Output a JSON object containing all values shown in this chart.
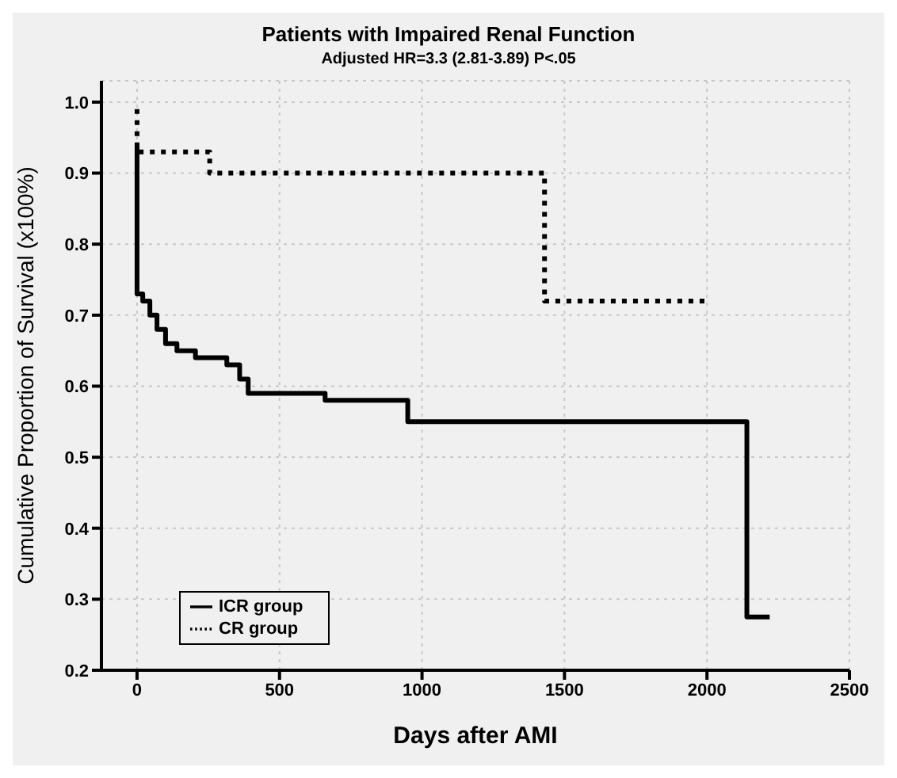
{
  "chart_data": {
    "type": "step",
    "title": "Patients with Impaired Renal Function",
    "subtitle": "Adjusted HR=3.3 (2.81-3.89)  P<.05",
    "xlabel": "Days after AMI",
    "ylabel": "Cumulative Proportion of Survival (x100%)",
    "series": [
      {
        "name": "ICR group",
        "color": "#000000",
        "line_style": "solid",
        "x": [
          0,
          0,
          5,
          20,
          45,
          70,
          100,
          140,
          205,
          315,
          360,
          390,
          410,
          660,
          950,
          2140,
          2220
        ],
        "values": [
          0.94,
          0.73,
          0.73,
          0.72,
          0.7,
          0.68,
          0.66,
          0.65,
          0.64,
          0.63,
          0.61,
          0.59,
          0.59,
          0.58,
          0.55,
          0.275,
          0.275
        ]
      },
      {
        "name": "CR group",
        "color": "#000000",
        "line_style": "dotted",
        "x": [
          0,
          0,
          255,
          1430,
          2010
        ],
        "values": [
          0.99,
          0.93,
          0.9,
          0.72,
          0.72
        ]
      }
    ],
    "xlim": [
      -125,
      2500
    ],
    "xticks": [
      0,
      500,
      1000,
      1500,
      2000,
      2500
    ],
    "ylim": [
      0.2,
      1.03
    ],
    "yticks": [
      {
        "value": 0.2,
        "label": "0.2"
      },
      {
        "value": 0.3,
        "label": "0.3"
      },
      {
        "value": 0.4,
        "label": "0.4"
      },
      {
        "value": 0.5,
        "label": "0.5"
      },
      {
        "value": 0.6,
        "label": "0.6"
      },
      {
        "value": 0.7,
        "label": "0.7"
      },
      {
        "value": 0.8,
        "label": "0.8"
      },
      {
        "value": 0.9,
        "label": "0.9"
      },
      {
        "value": 1.0,
        "label": "1.0"
      }
    ],
    "grid": true,
    "legend": "bottom left",
    "marker": "none"
  }
}
